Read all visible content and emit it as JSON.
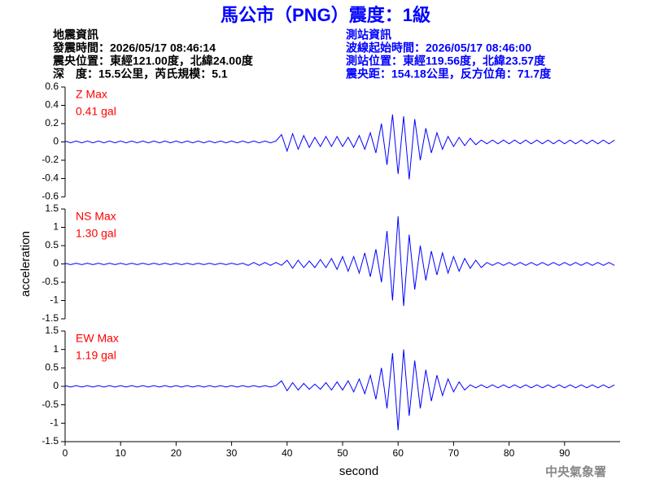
{
  "header": {
    "title": "馬公市（PNG）震度：1級",
    "left": [
      "地震資訊",
      "發震時間：2026/05/17 08:46:14",
      "震央位置：東經121.00度，北緯24.00度",
      "深　度：15.5公里，芮氏規模：5.1"
    ],
    "right": [
      "測站資訊",
      "波線起始時間：2026/05/17 08:46:00",
      "測站位置：東經119.56度，北緯23.57度",
      "震央距：154.18公里，反方位角：71.7度"
    ],
    "footer": "中央氣象署"
  },
  "chart_data": [
    {
      "type": "line",
      "color": "#0000ff",
      "annotations": [
        "Z Max",
        "0.41 gal"
      ],
      "annotation_color": "#ff0000",
      "xlim": [
        0,
        100
      ],
      "ylim": [
        -0.6,
        0.6
      ],
      "yticks": [
        0.6,
        0.4,
        0.2,
        0,
        -0.2,
        -0.4,
        -0.6
      ],
      "x": [
        0,
        1,
        2,
        3,
        4,
        5,
        6,
        7,
        8,
        9,
        10,
        11,
        12,
        13,
        14,
        15,
        16,
        17,
        18,
        19,
        20,
        21,
        22,
        23,
        24,
        25,
        26,
        27,
        28,
        29,
        30,
        31,
        32,
        33,
        34,
        35,
        36,
        37,
        38,
        39,
        40,
        41,
        42,
        43,
        44,
        45,
        46,
        47,
        48,
        49,
        50,
        51,
        52,
        53,
        54,
        55,
        56,
        57,
        58,
        59,
        60,
        61,
        62,
        63,
        64,
        65,
        66,
        67,
        68,
        69,
        70,
        71,
        72,
        73,
        74,
        75,
        76,
        77,
        78,
        79,
        80,
        81,
        82,
        83,
        84,
        85,
        86,
        87,
        88,
        89,
        90,
        91,
        92,
        93,
        94,
        95,
        96,
        97,
        98,
        99
      ],
      "values": [
        0.01,
        -0.01,
        0.01,
        -0.01,
        0.01,
        -0.01,
        0.01,
        -0.01,
        0.01,
        -0.01,
        0.01,
        -0.01,
        0.01,
        -0.01,
        0.01,
        -0.01,
        0.01,
        -0.01,
        0.01,
        -0.01,
        0.01,
        -0.01,
        0.01,
        -0.01,
        0.01,
        -0.01,
        0.01,
        -0.01,
        0.01,
        -0.01,
        0.01,
        -0.01,
        0.01,
        -0.01,
        0.01,
        -0.01,
        0.01,
        -0.01,
        0.01,
        0.08,
        -0.1,
        0.09,
        -0.08,
        0.07,
        -0.06,
        0.05,
        -0.05,
        0.06,
        -0.05,
        0.06,
        -0.05,
        0.05,
        -0.06,
        0.07,
        -0.08,
        0.1,
        -0.12,
        0.2,
        -0.25,
        0.3,
        -0.35,
        0.28,
        -0.41,
        0.25,
        -0.2,
        0.15,
        -0.12,
        0.1,
        -0.08,
        0.06,
        -0.05,
        0.05,
        -0.04,
        0.04,
        -0.03,
        0.02,
        -0.02,
        0.02,
        -0.02,
        0.02,
        -0.02,
        0.02,
        -0.02,
        0.02,
        -0.02,
        0.02,
        -0.02,
        0.02,
        -0.02,
        0.02,
        -0.02,
        0.02,
        -0.02,
        0.02,
        -0.02,
        0.02,
        -0.02,
        0.02,
        -0.02,
        0.02
      ]
    },
    {
      "type": "line",
      "color": "#0000ff",
      "ylabel": "acceleration",
      "annotations": [
        "NS Max",
        "1.30 gal"
      ],
      "annotation_color": "#ff0000",
      "xlim": [
        0,
        100
      ],
      "ylim": [
        -1.5,
        1.5
      ],
      "yticks": [
        1.5,
        1,
        0.5,
        0,
        -0.5,
        -1,
        -1.5
      ],
      "x": [
        0,
        1,
        2,
        3,
        4,
        5,
        6,
        7,
        8,
        9,
        10,
        11,
        12,
        13,
        14,
        15,
        16,
        17,
        18,
        19,
        20,
        21,
        22,
        23,
        24,
        25,
        26,
        27,
        28,
        29,
        30,
        31,
        32,
        33,
        34,
        35,
        36,
        37,
        38,
        39,
        40,
        41,
        42,
        43,
        44,
        45,
        46,
        47,
        48,
        49,
        50,
        51,
        52,
        53,
        54,
        55,
        56,
        57,
        58,
        59,
        60,
        61,
        62,
        63,
        64,
        65,
        66,
        67,
        68,
        69,
        70,
        71,
        72,
        73,
        74,
        75,
        76,
        77,
        78,
        79,
        80,
        81,
        82,
        83,
        84,
        85,
        86,
        87,
        88,
        89,
        90,
        91,
        92,
        93,
        94,
        95,
        96,
        97,
        98,
        99
      ],
      "values": [
        0.02,
        -0.02,
        0.02,
        -0.02,
        0.02,
        -0.02,
        0.02,
        -0.02,
        0.02,
        -0.02,
        0.02,
        -0.02,
        0.02,
        -0.02,
        0.02,
        -0.02,
        0.02,
        -0.02,
        0.02,
        -0.02,
        0.02,
        -0.02,
        0.02,
        -0.02,
        0.02,
        -0.02,
        0.02,
        -0.02,
        0.02,
        -0.02,
        0.02,
        -0.02,
        0.02,
        -0.04,
        0.04,
        -0.04,
        0.04,
        -0.04,
        0.04,
        -0.04,
        0.1,
        -0.12,
        0.1,
        -0.1,
        0.08,
        -0.1,
        0.12,
        -0.1,
        0.15,
        -0.15,
        0.2,
        -0.2,
        0.2,
        -0.25,
        0.3,
        -0.35,
        0.4,
        -0.5,
        0.9,
        -1.0,
        1.3,
        -1.15,
        0.8,
        -0.7,
        0.5,
        -0.45,
        0.35,
        -0.3,
        0.3,
        -0.25,
        0.2,
        -0.2,
        0.15,
        -0.12,
        0.1,
        -0.1,
        0.04,
        -0.04,
        0.04,
        -0.04,
        0.04,
        -0.04,
        0.04,
        -0.04,
        0.04,
        -0.04,
        0.04,
        -0.04,
        0.04,
        -0.04,
        0.04,
        -0.04,
        0.04,
        -0.04,
        0.04,
        -0.04,
        0.04,
        -0.04,
        0.04,
        -0.04
      ]
    },
    {
      "type": "line",
      "color": "#0000ff",
      "xlabel": "second",
      "annotations": [
        "EW Max",
        "1.19 gal"
      ],
      "annotation_color": "#ff0000",
      "xlim": [
        0,
        100
      ],
      "xticks": [
        0,
        10,
        20,
        30,
        40,
        50,
        60,
        70,
        80,
        90
      ],
      "ylim": [
        -1.5,
        1.5
      ],
      "yticks": [
        1.5,
        1,
        0.5,
        0,
        -0.5,
        -1,
        -1.5
      ],
      "x": [
        0,
        1,
        2,
        3,
        4,
        5,
        6,
        7,
        8,
        9,
        10,
        11,
        12,
        13,
        14,
        15,
        16,
        17,
        18,
        19,
        20,
        21,
        22,
        23,
        24,
        25,
        26,
        27,
        28,
        29,
        30,
        31,
        32,
        33,
        34,
        35,
        36,
        37,
        38,
        39,
        40,
        41,
        42,
        43,
        44,
        45,
        46,
        47,
        48,
        49,
        50,
        51,
        52,
        53,
        54,
        55,
        56,
        57,
        58,
        59,
        60,
        61,
        62,
        63,
        64,
        65,
        66,
        67,
        68,
        69,
        70,
        71,
        72,
        73,
        74,
        75,
        76,
        77,
        78,
        79,
        80,
        81,
        82,
        83,
        84,
        85,
        86,
        87,
        88,
        89,
        90,
        91,
        92,
        93,
        94,
        95,
        96,
        97,
        98,
        99
      ],
      "values": [
        0.02,
        -0.02,
        0.02,
        -0.02,
        0.02,
        -0.02,
        0.02,
        -0.02,
        0.02,
        -0.02,
        0.02,
        -0.02,
        0.02,
        -0.02,
        0.02,
        -0.02,
        0.02,
        -0.02,
        0.02,
        -0.02,
        0.02,
        -0.02,
        0.02,
        -0.02,
        0.02,
        -0.02,
        0.02,
        -0.02,
        0.02,
        -0.02,
        0.02,
        -0.02,
        0.02,
        -0.02,
        0.02,
        -0.02,
        0.02,
        -0.02,
        0.02,
        0.15,
        -0.12,
        0.1,
        -0.1,
        0.08,
        -0.08,
        0.06,
        -0.08,
        0.1,
        -0.1,
        0.12,
        -0.1,
        0.15,
        -0.15,
        0.2,
        -0.2,
        0.3,
        -0.35,
        0.5,
        -0.6,
        0.9,
        -1.19,
        1.0,
        -0.8,
        0.7,
        -0.6,
        0.45,
        -0.4,
        0.3,
        -0.25,
        0.2,
        -0.15,
        0.12,
        -0.1,
        0.04,
        -0.04,
        0.04,
        -0.04,
        0.04,
        -0.04,
        0.04,
        -0.04,
        0.04,
        -0.04,
        0.04,
        -0.04,
        0.04,
        -0.04,
        0.04,
        -0.04,
        0.04,
        -0.04,
        0.04,
        -0.04,
        0.04,
        -0.04,
        0.04,
        -0.04,
        0.04,
        -0.04,
        0.04
      ]
    }
  ]
}
